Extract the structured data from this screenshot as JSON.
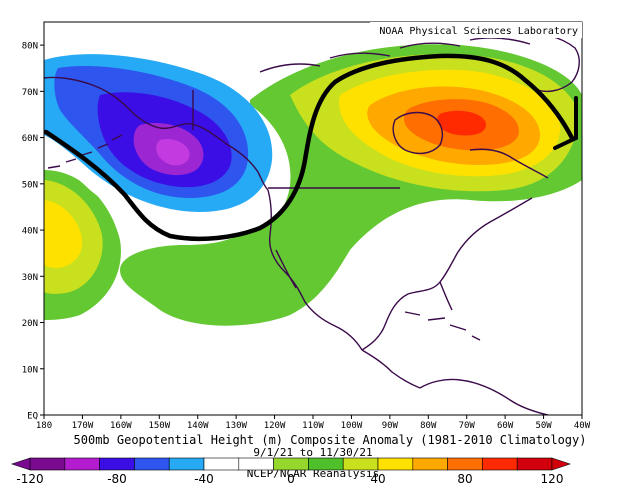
{
  "map": {
    "credit": "NOAA Physical Sciences Laboratory",
    "title": "500mb Geopotential Height (m) Composite Anomaly (1981-2010 Climatology)",
    "date_range": "9/1/21 to 11/30/21",
    "source": "NCEP/NCAR Reanalysis",
    "lat_labels": [
      "80N",
      "70N",
      "60N",
      "50N",
      "40N",
      "30N",
      "20N",
      "10N",
      "EQ"
    ],
    "lon_labels": [
      "180",
      "170W",
      "160W",
      "150W",
      "140W",
      "130W",
      "120W",
      "110W",
      "100W",
      "90W",
      "80W",
      "70W",
      "60W",
      "50W",
      "40W"
    ],
    "extent": {
      "lon_min": -180,
      "lon_max": -40,
      "lat_min": 0,
      "lat_max": 85
    }
  },
  "colorbar": {
    "labels": [
      "-120",
      "-80",
      "-40",
      "0",
      "40",
      "80",
      "120"
    ],
    "colors": [
      "#7a0a8f",
      "#b31cd1",
      "#3b0ee6",
      "#2e55ee",
      "#27aaf5",
      "#ffffff",
      "#ffffff",
      "#96d72e",
      "#4fbf2a",
      "#c8e01e",
      "#ffe100",
      "#ffa800",
      "#ff6e00",
      "#ff2a00",
      "#d2000c"
    ]
  },
  "colors": {
    "neg_strong": "#9c26d2",
    "neg": "#3b0ee6",
    "neg_mid": "#2e55ee",
    "neg_weak": "#27aaf5",
    "pos_weak": "#63c832",
    "pos_mid": "#c8e01e",
    "pos_strong": "#ffe100",
    "pos_orange": "#ffa800",
    "pos_red": "#ff2a00",
    "annotation_line": "#000000",
    "coastline": "#3a0a4a"
  }
}
